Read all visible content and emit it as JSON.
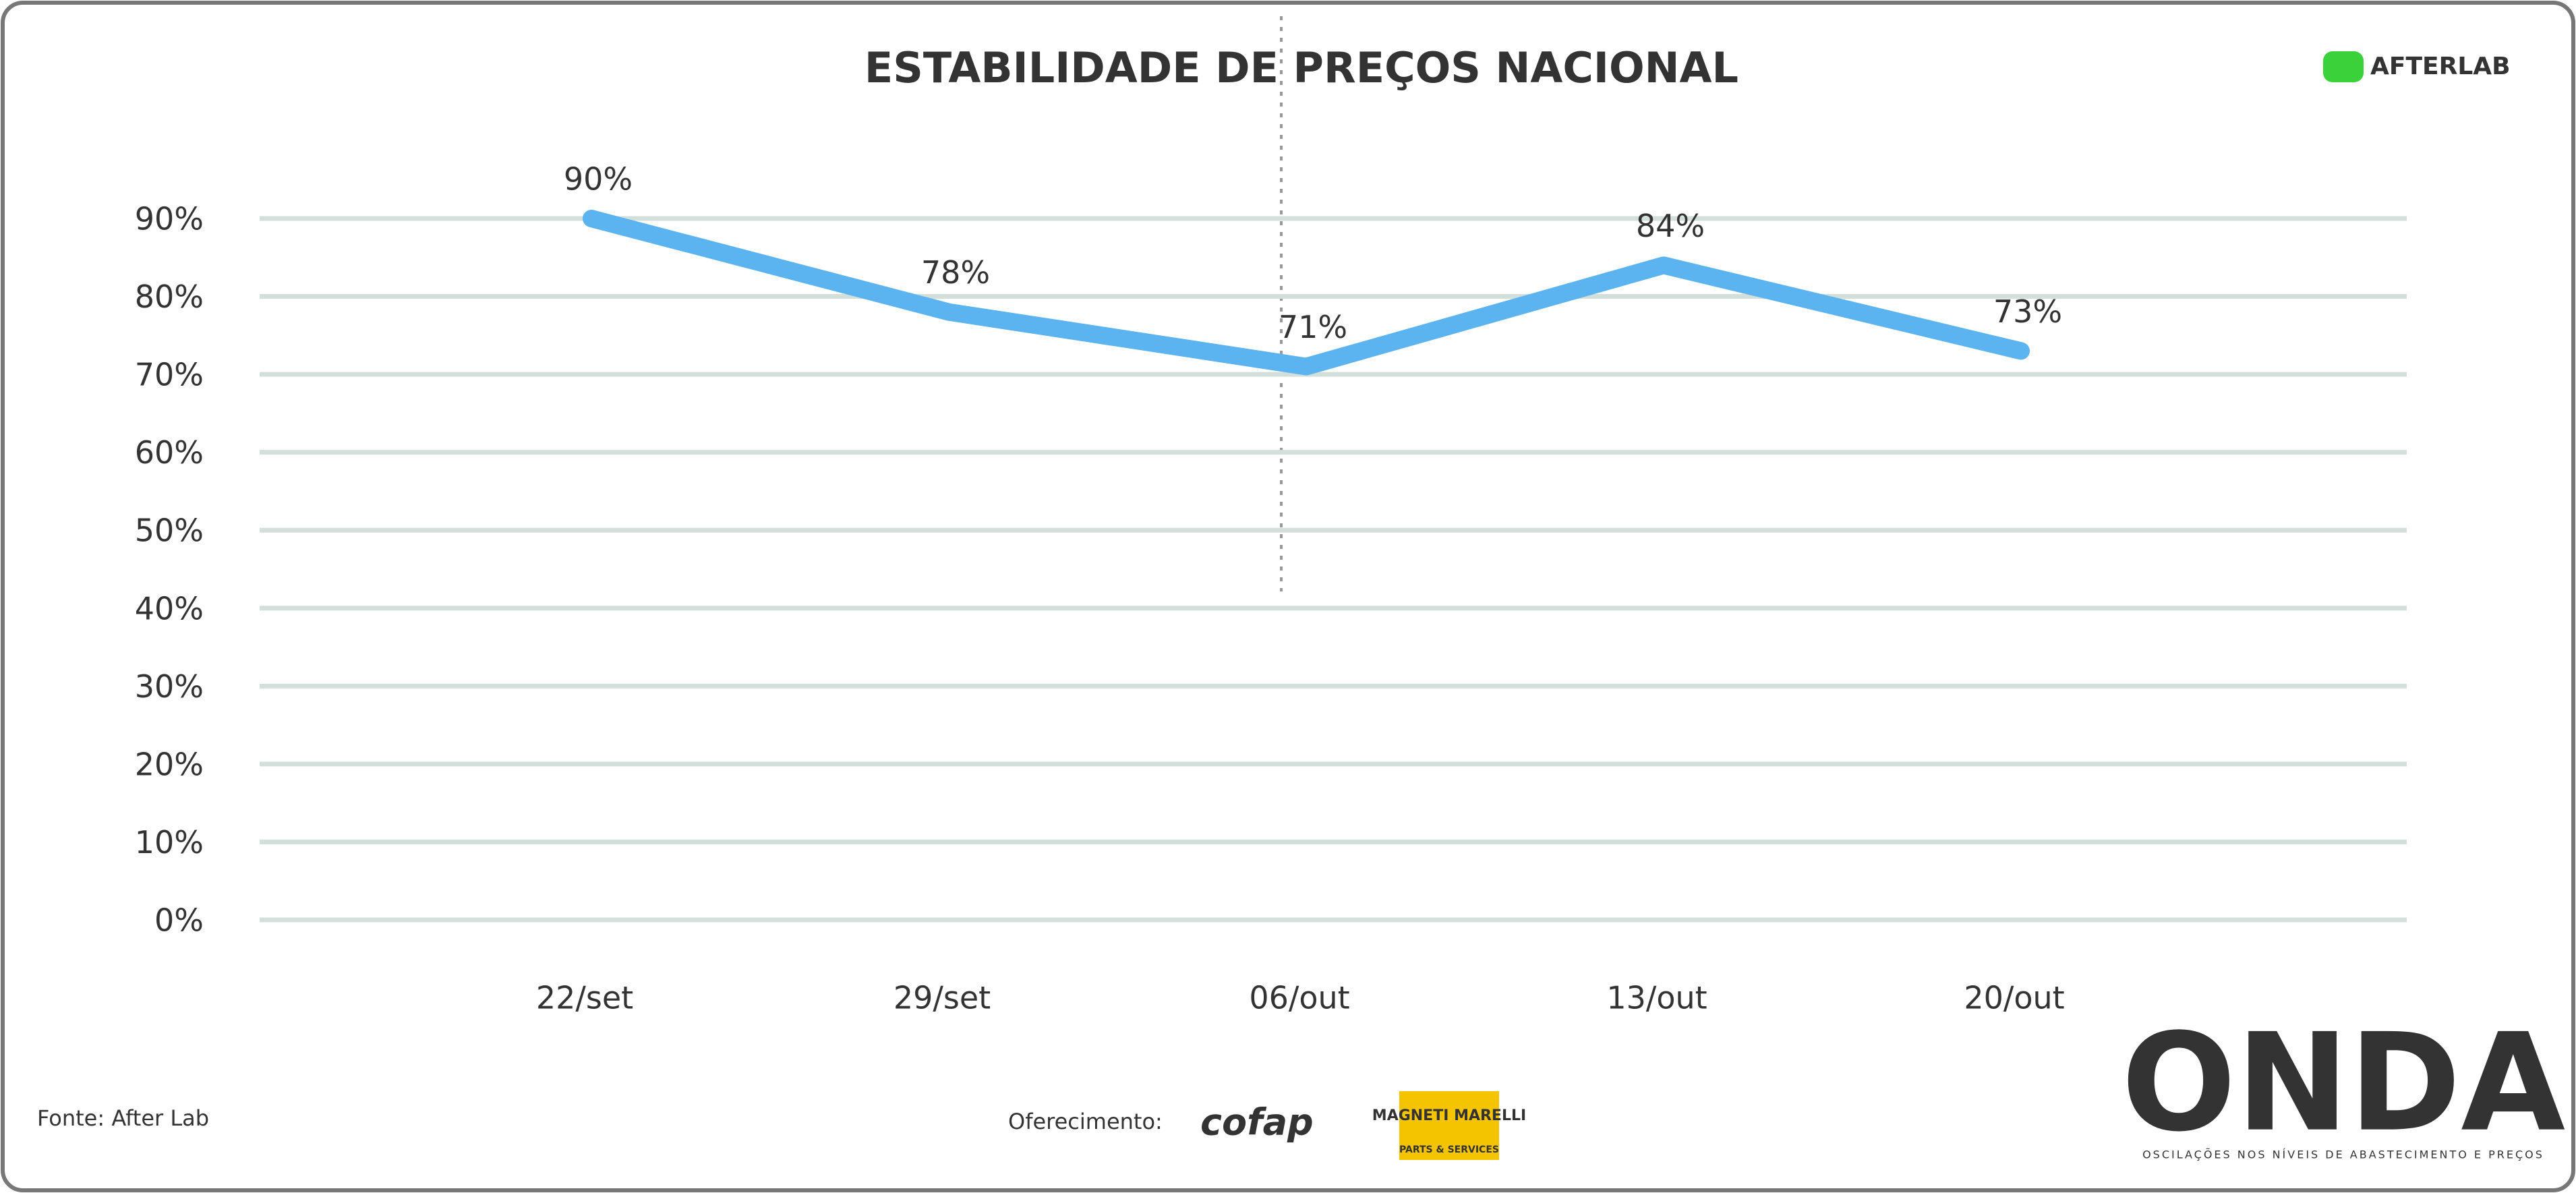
{
  "chart_data": {
    "type": "line",
    "title": "ESTABILIDADE DE PREÇOS NACIONAL",
    "categories": [
      "22/set",
      "29/set",
      "06/out",
      "13/out",
      "20/out"
    ],
    "series": [
      {
        "name": "Estabilidade",
        "color": "#5bb3f0",
        "values": [
          90,
          78,
          71,
          84,
          73
        ],
        "value_labels": [
          "90%",
          "78%",
          "71%",
          "84%",
          "73%"
        ]
      }
    ],
    "ylim": [
      0,
      90
    ],
    "yticks": [
      {
        "value": 0,
        "label": "0%"
      },
      {
        "value": 10,
        "label": "10%"
      },
      {
        "value": 20,
        "label": "20%"
      },
      {
        "value": 30,
        "label": "30%"
      },
      {
        "value": 40,
        "label": "40%"
      },
      {
        "value": 50,
        "label": "50%"
      },
      {
        "value": 60,
        "label": "60%"
      },
      {
        "value": 70,
        "label": "70%"
      },
      {
        "value": 80,
        "label": "80%"
      },
      {
        "value": 90,
        "label": "90%"
      }
    ],
    "grid": true
  },
  "branding": {
    "logo": "AFTERLAB",
    "source": "Fonte: After Lab",
    "sponsor_label": "Oferecimento:",
    "sponsor1": "cofap",
    "sponsor2": "MAGNETI MARELLI",
    "sponsor2_sub": "PARTS & SERVICES",
    "brand": "ONDA",
    "brand_sub": "OSCILAÇÕES NOS NÍVEIS DE ABASTECIMENTO E PREÇOS"
  }
}
